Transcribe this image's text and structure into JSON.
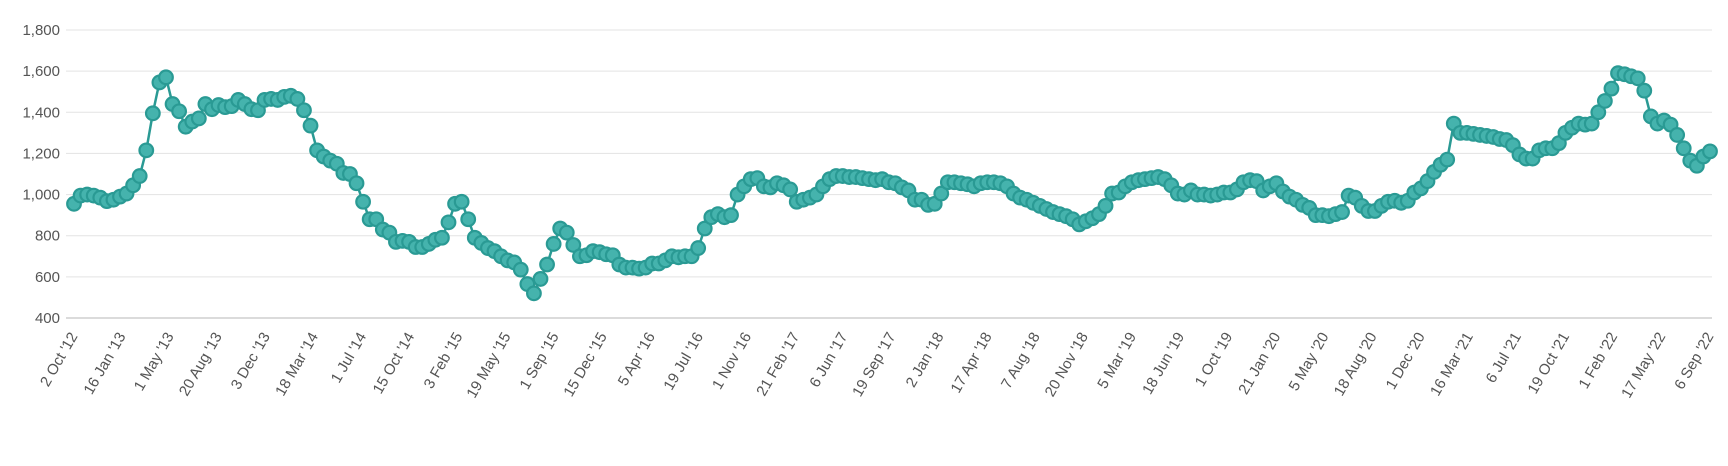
{
  "colors": {
    "series": "#45b3ad",
    "series_stroke": "#2a9a94",
    "grid": "#e3e3e3",
    "text": "#555555",
    "background": "#ffffff"
  },
  "chart_data": {
    "type": "line",
    "title": "",
    "xlabel": "",
    "ylabel": "",
    "ylim": [
      400,
      1800
    ],
    "y_ticks": [
      "400",
      "600",
      "800",
      "1,000",
      "1,200",
      "1,400",
      "1,600",
      "1,800"
    ],
    "x_tick_labels": [
      "2 Oct '12",
      "16 Jan '13",
      "1 May '13",
      "20 Aug '13",
      "3 Dec '13",
      "18 Mar '14",
      "1 Jul '14",
      "15 Oct '14",
      "3 Feb '15",
      "19 May '15",
      "1 Sep '15",
      "15 Dec '15",
      "5 Apr '16",
      "19 Jul '16",
      "1 Nov '16",
      "21 Feb '17",
      "6 Jun '17",
      "19 Sep '17",
      "2 Jan '18",
      "17 Apr '18",
      "7 Aug '18",
      "20 Nov '18",
      "5 Mar '19",
      "18 Jun '19",
      "1 Oct '19",
      "21 Jan '20",
      "5 May '20",
      "18 Aug '20",
      "1 Dec '20",
      "16 Mar '21",
      "6 Jul '21",
      "19 Oct '21",
      "1 Feb '22",
      "17 May '22",
      "6 Sep '22"
    ],
    "grid": true,
    "legend": "none",
    "series": [
      {
        "values": [
          955,
          995,
          1000,
          995,
          985,
          968,
          975,
          990,
          1005,
          1045,
          1090,
          1215,
          1395,
          1545,
          1570,
          1440,
          1405,
          1330,
          1355,
          1370,
          1440,
          1415,
          1435,
          1425,
          1430,
          1460,
          1440,
          1415,
          1410,
          1460,
          1465,
          1460,
          1475,
          1480,
          1465,
          1410,
          1335,
          1215,
          1185,
          1165,
          1150,
          1105,
          1100,
          1055,
          965,
          880,
          880,
          830,
          815,
          770,
          775,
          770,
          745,
          745,
          760,
          780,
          790,
          865,
          955,
          965,
          880,
          790,
          765,
          740,
          725,
          700,
          680,
          670,
          635,
          565,
          520,
          590,
          660,
          760,
          835,
          815,
          755,
          700,
          705,
          725,
          720,
          710,
          705,
          660,
          645,
          645,
          640,
          645,
          665,
          665,
          680,
          700,
          695,
          700,
          700,
          740,
          835,
          890,
          905,
          890,
          900,
          1000,
          1040,
          1075,
          1080,
          1040,
          1035,
          1055,
          1045,
          1025,
          965,
          975,
          985,
          1000,
          1040,
          1075,
          1090,
          1090,
          1085,
          1085,
          1080,
          1075,
          1070,
          1075,
          1060,
          1055,
          1035,
          1020,
          975,
          975,
          950,
          955,
          1005,
          1060,
          1060,
          1055,
          1050,
          1040,
          1055,
          1060,
          1060,
          1055,
          1040,
          1005,
          985,
          975,
          960,
          945,
          930,
          915,
          905,
          895,
          880,
          855,
          870,
          885,
          905,
          945,
          1005,
          1010,
          1040,
          1060,
          1070,
          1075,
          1080,
          1085,
          1075,
          1045,
          1005,
          1000,
          1020,
          1000,
          1000,
          995,
          1000,
          1010,
          1010,
          1025,
          1060,
          1070,
          1065,
          1020,
          1040,
          1055,
          1015,
          990,
          975,
          950,
          935,
          900,
          900,
          895,
          905,
          915,
          995,
          985,
          945,
          920,
          920,
          945,
          965,
          970,
          960,
          970,
          1010,
          1030,
          1065,
          1110,
          1145,
          1170,
          1345,
          1300,
          1300,
          1295,
          1290,
          1285,
          1280,
          1270,
          1265,
          1240,
          1195,
          1175,
          1175,
          1215,
          1225,
          1225,
          1250,
          1300,
          1325,
          1345,
          1340,
          1345,
          1400,
          1455,
          1515,
          1590,
          1585,
          1575,
          1565,
          1505,
          1380,
          1345,
          1360,
          1340,
          1290,
          1225,
          1165,
          1140,
          1185,
          1210
        ]
      }
    ]
  }
}
